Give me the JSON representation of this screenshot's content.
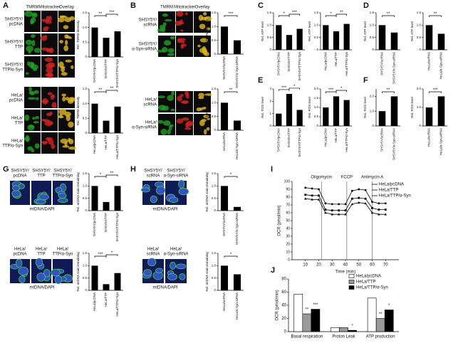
{
  "panel_labels": [
    "A",
    "B",
    "C",
    "D",
    "E",
    "F",
    "G",
    "H",
    "I",
    "J"
  ],
  "A": {
    "headers": [
      "TMRM",
      "Mitotracker",
      "Overlay"
    ],
    "rows": [
      [
        "SHSY5Y/",
        "pcDNA"
      ],
      [
        "SHSY5Y/",
        "TTP"
      ],
      [
        "SHSY5Y/",
        "TTP/α-Syn"
      ],
      [
        "HeLa/",
        "pcDNA"
      ],
      [
        "HeLa/",
        "TTP"
      ],
      [
        "HeLa/",
        "TTP/α-Syn"
      ]
    ],
    "charts": [
      {
        "type": "bar",
        "ylabel": "Rel. TMRM intensity",
        "categories": [
          "SHSY5Y/pcDNA",
          "SHSY5Y/TTP",
          "SHSY5Y/TTP/α-Syn"
        ],
        "values": [
          1.0,
          0.65,
          0.87
        ],
        "ylim": [
          0,
          1.5
        ],
        "yticks": [
          0,
          0.5,
          {
            "value": 1,
            "label": "1.0"
          },
          1.5
        ],
        "significance": [
          "**",
          "***"
        ]
      },
      {
        "type": "bar",
        "ylabel": "Rel. TMRM intensity",
        "categories": [
          "HeLa/pcDNA",
          "HeLa/TTP",
          "HeLa/TTP/α-Syn"
        ],
        "values": [
          1.0,
          0.42,
          0.9
        ],
        "ylim": [
          0,
          1.5
        ],
        "yticks": [
          0,
          0.5,
          {
            "value": 1,
            "label": "1.0"
          },
          1.5
        ],
        "significance": [
          "**",
          "**"
        ]
      }
    ]
  },
  "B": {
    "headers": [
      "TMRM",
      "Mitotracker",
      "Overlay"
    ],
    "rows": [
      [
        "SHSY5Y/",
        "scRNA"
      ],
      [
        "SHSY5Y/",
        "α-Syn-siRNA"
      ],
      [
        "HeLa/",
        "scRNA"
      ],
      [
        "HeLa/",
        "α-Syn-siRNA"
      ]
    ],
    "charts": [
      {
        "type": "bar",
        "ylabel": "Rel. TMRM intensity",
        "categories": [
          "SHSY5Y/scRNA",
          "SHSY5Y/α-Syn-siRNA"
        ],
        "values": [
          1.0,
          0.5
        ],
        "ylim": [
          0,
          1.5
        ],
        "yticks": [
          0,
          0.5,
          {
            "value": 1,
            "label": "1.0"
          },
          1.5
        ],
        "significance": [
          "***"
        ]
      },
      {
        "type": "bar",
        "ylabel": "Rel. TMRM intensity",
        "categories": [
          "HeLa/scRNA",
          "HeLa/α-Syn-siRNA"
        ],
        "values": [
          1.0,
          0.35
        ],
        "ylim": [
          0,
          1.5
        ],
        "yticks": [
          0,
          0.5,
          {
            "value": 1,
            "label": "1.0"
          },
          1.5
        ],
        "significance": [
          "**"
        ]
      }
    ]
  },
  "C": {
    "charts": [
      {
        "type": "bar",
        "ylabel": "Rel. ATP level",
        "categories": [
          "SHSY5Y/pcDNA",
          "SHSY5Y/TTP",
          "SHSY5Y/TTP/α-Syn"
        ],
        "values": [
          1.0,
          0.6,
          0.85
        ],
        "ylim": [
          0,
          1.5
        ],
        "yticks": [
          0,
          0.5,
          {
            "value": 1,
            "label": "1.0"
          },
          1.5
        ],
        "significance": [
          "*",
          "***"
        ]
      },
      {
        "type": "bar",
        "ylabel": "Rel. ATP level",
        "categories": [
          "HeLa/pcDNA",
          "HeLa/TTP",
          "HeLa/TTP/α-Syn"
        ],
        "values": [
          1.0,
          0.75,
          1.05
        ],
        "ylim": [
          0,
          1.5
        ],
        "yticks": [
          0,
          0.5,
          {
            "value": 1,
            "label": "1.0"
          },
          1.5
        ],
        "significance": [
          "*",
          "**"
        ]
      }
    ]
  },
  "D": {
    "charts": [
      {
        "type": "bar",
        "ylabel": "Rel. ATP level",
        "categories": [
          "SHSY5Y/scRNA",
          "SHSY5Y/α-Syn-siRNA"
        ],
        "values": [
          1.0,
          0.7
        ],
        "ylim": [
          0,
          1.5
        ],
        "yticks": [
          0,
          0.5,
          {
            "value": 1,
            "label": "1.0"
          },
          1.5
        ],
        "significance": [
          "**"
        ]
      },
      {
        "type": "bar",
        "ylabel": "Rel. ATP level",
        "categories": [
          "HeLa/scRNA",
          "HeLa/α-Syn-siRNA"
        ],
        "values": [
          1.0,
          0.65
        ],
        "ylim": [
          0,
          1.5
        ],
        "yticks": [
          0,
          0.5,
          {
            "value": 1,
            "label": "1.0"
          },
          1.5
        ],
        "significance": [
          "**"
        ]
      }
    ]
  },
  "E": {
    "charts": [
      {
        "type": "bar",
        "ylabel": "Rel. ROS level",
        "categories": [
          "SHSY5Y/pcDNA",
          "SHSY5Y/TTP",
          "SHSY5Y/TTP/α-Syn"
        ],
        "values": [
          1.0,
          2.6,
          1.3
        ],
        "ylim": [
          0,
          3
        ],
        "yticks": [
          0,
          1,
          2,
          3
        ],
        "significance": [
          "***",
          "*"
        ]
      },
      {
        "type": "bar",
        "ylabel": "Rel. ROS level",
        "categories": [
          "HeLa/pcDNA",
          "HeLa/TTP",
          "HeLa/TTP/α-Syn"
        ],
        "values": [
          1.0,
          1.6,
          1.4
        ],
        "ylim": [
          0,
          2
        ],
        "yticks": [
          0,
          {
            "value": 0.5,
            "label": "0.5"
          },
          {
            "value": 1,
            "label": "1.0"
          },
          1.5,
          {
            "value": 2,
            "label": "2.0"
          }
        ],
        "significance": [
          "***",
          "*"
        ]
      }
    ]
  },
  "F": {
    "charts": [
      {
        "type": "bar",
        "ylabel": "Rel. ROS level",
        "categories": [
          "SHSY5Y/scRNA",
          "SHSY5Y/α-Syn-siRNA"
        ],
        "values": [
          1.0,
          2.0
        ],
        "ylim": [
          0,
          2.5
        ],
        "yticks": [
          0,
          {
            "value": 1,
            "label": "1.0"
          },
          {
            "value": 2,
            "label": "2.0"
          }
        ],
        "significance": [
          "**"
        ]
      },
      {
        "type": "bar",
        "ylabel": "Rel. ROS level",
        "categories": [
          "HeLa/scRNA",
          "HeLa/α-Syn-siRNA"
        ],
        "values": [
          1.0,
          1.6
        ],
        "ylim": [
          0,
          2
        ],
        "yticks": [
          0,
          {
            "value": 1,
            "label": "1.0"
          },
          {
            "value": 2,
            "label": "2.0"
          }
        ],
        "significance": [
          "***"
        ]
      }
    ]
  },
  "G": {
    "headers_top": [
      [
        "SHSY5Y/",
        "pcDNA"
      ],
      [
        "SHSY5Y/",
        "TTP"
      ],
      [
        "SHSY5Y/",
        "TTP/α-Syn"
      ]
    ],
    "headers_bottom": [
      [
        "HeLa/",
        "pcDNA"
      ],
      [
        "HeLa/",
        "TTP"
      ],
      [
        "HeLa/",
        "TTP/α-Syn"
      ]
    ],
    "caption_top": "mtDNA/DAPI",
    "caption_bottom": "mtDNA/DAPI",
    "charts": [
      {
        "type": "bar",
        "ylabel": "Rel. mtDNA stain remaining",
        "categories": [
          "SHSY5Y/pcDNA",
          "SHSY5Y/TTP",
          "SHSY5Y/TTP/α-Syn"
        ],
        "values": [
          1.0,
          0.35,
          1.0
        ],
        "ylim": [
          0,
          1.5
        ],
        "yticks": [
          0,
          0.5,
          {
            "value": 1,
            "label": "1.0"
          },
          1.5
        ],
        "significance": [
          "*",
          "**"
        ]
      },
      {
        "type": "bar",
        "ylabel": "Rel. mtDNA stain remaining",
        "categories": [
          "HeLa/pcDNA",
          "HeLa/TTP",
          "HeLa/TTP/α-Syn"
        ],
        "values": [
          1.0,
          0.25,
          0.7
        ],
        "ylim": [
          0,
          1.5
        ],
        "yticks": [
          0,
          0.5,
          {
            "value": 1,
            "label": "1.0"
          },
          1.5
        ],
        "significance": [
          "***",
          "*"
        ]
      }
    ]
  },
  "H": {
    "headers_top": [
      [
        "SHSY5Y/",
        "scRNA"
      ],
      [
        "SHSY5Y/",
        "α-Syn-siRNA"
      ]
    ],
    "headers_bottom": [
      [
        "HeLa/",
        "scRNA"
      ],
      [
        "HeLa/",
        "α-Syn-siRNA"
      ]
    ],
    "caption_top": "mtDNA/DAPI",
    "caption_bottom": "mtDNA/DAPI",
    "charts": [
      {
        "type": "bar",
        "ylabel": "Rel. mtDNA stain remaining",
        "categories": [
          "SHSY5Y/scRNA",
          "SHSY5Y/α-Syn-siRNA"
        ],
        "values": [
          1.0,
          0.15
        ],
        "ylim": [
          0,
          1.5
        ],
        "yticks": [
          0,
          0.5,
          {
            "value": 1,
            "label": "1.0"
          },
          1.5
        ],
        "significance": [
          "*"
        ]
      },
      {
        "type": "bar",
        "ylabel": "Rel. mtDNA stain remaining",
        "categories": [
          "HeLa/scRNA",
          "HeLa/α-Syn-siRNA"
        ],
        "values": [
          1.0,
          0.65
        ],
        "ylim": [
          0,
          1.5
        ],
        "yticks": [
          0,
          0.5,
          {
            "value": 1,
            "label": "1.0"
          },
          1.5
        ],
        "significance": [
          "*"
        ]
      }
    ]
  },
  "I": {
    "type": "line",
    "xlabel": "Time (min)",
    "ylabel": "OCR (pmol/min)",
    "x": [
      10,
      15,
      20,
      25,
      30,
      35,
      40,
      45,
      50,
      55,
      60,
      65,
      70
    ],
    "xlim": [
      0,
      80
    ],
    "xticks": [
      10,
      20,
      30,
      40,
      50,
      60,
      70
    ],
    "ylim": [
      0,
      100
    ],
    "yticks": [
      0,
      10,
      20,
      30,
      40,
      50,
      60,
      70,
      80,
      90,
      100
    ],
    "events": [
      {
        "x": 22,
        "label": "Oligomycin"
      },
      {
        "x": 41,
        "label": "FCCP"
      },
      {
        "x": 60,
        "label": "Antimycin A"
      }
    ],
    "series": [
      {
        "name": "HeLa/pcDNA",
        "color": "#000000",
        "marker": "circle",
        "values": [
          92,
          91,
          90,
          72,
          71,
          71,
          71,
          88,
          90,
          89,
          74,
          72,
          72
        ]
      },
      {
        "name": "HeLa/TTP",
        "color": "#000000",
        "marker": "square",
        "values": [
          83,
          82,
          82,
          64,
          63,
          63,
          63,
          78,
          79,
          78,
          66,
          64,
          64
        ]
      },
      {
        "name": "HeLa/TTP/α-Syn",
        "color": "#000000",
        "marker": "triangle",
        "values": [
          78,
          77,
          77,
          60,
          58,
          58,
          58,
          71,
          73,
          72,
          60,
          58,
          58
        ]
      }
    ]
  },
  "J": {
    "type": "grouped_bar",
    "ylabel": "OCR (pmol/min)",
    "categories": [
      "Basal respiration",
      "Proton Leak",
      "ATP production"
    ],
    "ylim": [
      0,
      80
    ],
    "yticks": [
      0,
      20,
      40,
      60,
      80
    ],
    "series": [
      {
        "name": "HeLa/pcDNA",
        "color": "#ffffff",
        "values": [
          57,
          6,
          51
        ]
      },
      {
        "name": "HeLa/TTP",
        "color": "#999999",
        "values": [
          27,
          6,
          20
        ],
        "annotations": [
          "**",
          null,
          "**"
        ]
      },
      {
        "name": "HeLa/TTP/α-Syn",
        "color": "#000000",
        "values": [
          34,
          2,
          33
        ],
        "annotations": [
          "***",
          "*",
          "*"
        ]
      }
    ]
  }
}
